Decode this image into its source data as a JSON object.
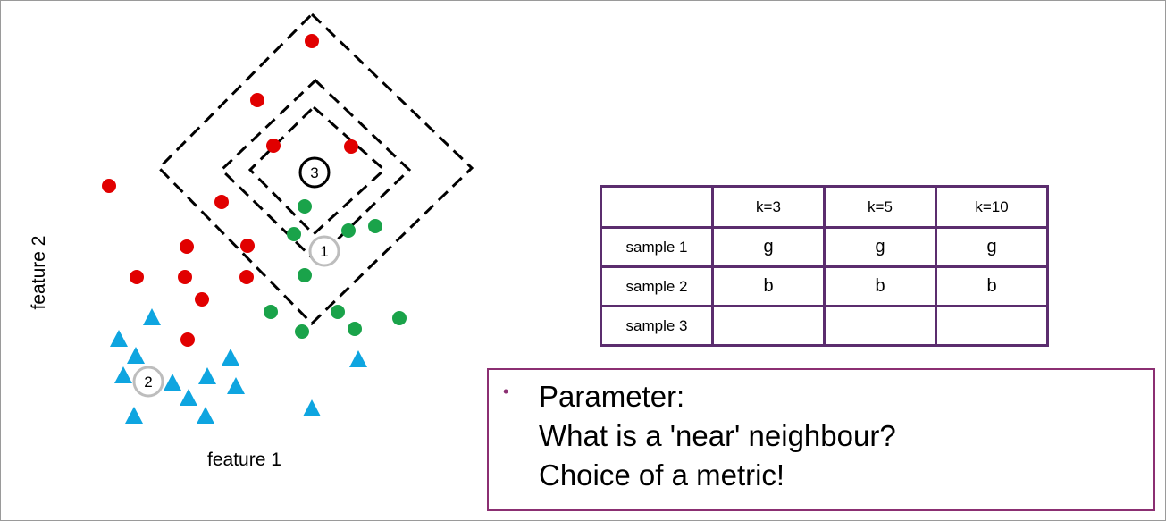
{
  "figure": {
    "xlabel": "feature 1",
    "ylabel": "feature 2",
    "colors": {
      "red": "#e10000",
      "green": "#1aa34a",
      "blue": "#0ea5e0",
      "dashed": "#000000",
      "grey_ring": "#bdbdbd"
    },
    "query_markers": [
      {
        "label": "1",
        "ring": "grey"
      },
      {
        "label": "2",
        "ring": "grey"
      },
      {
        "label": "3",
        "ring": "black"
      }
    ],
    "metric_shape": "diamond (L1 / Manhattan)",
    "neighbourhoods": 3
  },
  "table": {
    "headers": [
      "",
      "k=3",
      "k=5",
      "k=10"
    ],
    "rows": [
      {
        "label": "sample 1",
        "values": [
          "g",
          "g",
          "g"
        ]
      },
      {
        "label": "sample 2",
        "values": [
          "b",
          "b",
          "b"
        ]
      },
      {
        "label": "sample 3",
        "values": [
          "",
          "",
          ""
        ]
      }
    ]
  },
  "note": {
    "bullet": "•",
    "lines": [
      "Parameter:",
      "What is a 'near' neighbour?",
      "Choice of a metric!"
    ]
  }
}
